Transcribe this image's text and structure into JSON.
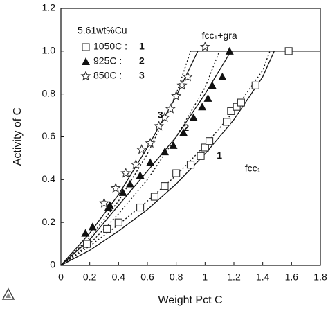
{
  "chart_data": {
    "type": "scatter",
    "x_label": "Weight Pct C",
    "y_label": "Activity of C",
    "xlim": [
      0,
      1.8
    ],
    "ylim": [
      0,
      1.2
    ],
    "xticks": [
      0,
      0.2,
      0.4,
      0.6,
      0.8,
      1,
      1.2,
      1.4,
      1.6,
      1.8
    ],
    "yticks": [
      0,
      0.2,
      0.4,
      0.6,
      0.8,
      {
        "value": 1,
        "label": "1.0"
      },
      1.2
    ],
    "legend_title": "5.61wt%Cu",
    "series": [
      {
        "name": "1050C :",
        "curve_label": "1",
        "marker": "square",
        "color": "#333",
        "x": [
          0.18,
          0.32,
          0.4,
          0.55,
          0.65,
          0.72,
          0.8,
          0.9,
          0.97,
          1.0,
          1.03,
          1.15,
          1.18,
          1.22,
          1.25,
          1.35,
          1.58
        ],
        "values": [
          0.1,
          0.17,
          0.2,
          0.27,
          0.32,
          0.37,
          0.43,
          0.47,
          0.51,
          0.55,
          0.58,
          0.67,
          0.72,
          0.74,
          0.76,
          0.84,
          1.0
        ]
      },
      {
        "name": "925C :",
        "curve_label": "2",
        "marker": "triangle",
        "color": "#111",
        "x": [
          0.17,
          0.22,
          0.33,
          0.34,
          0.43,
          0.48,
          0.55,
          0.62,
          0.72,
          0.78,
          0.85,
          0.92,
          0.98,
          1.02,
          1.05,
          1.12,
          1.17
        ],
        "values": [
          0.15,
          0.18,
          0.27,
          0.28,
          0.34,
          0.38,
          0.42,
          0.48,
          0.53,
          0.56,
          0.62,
          0.69,
          0.74,
          0.78,
          0.84,
          0.88,
          1.0
        ]
      },
      {
        "name": "850C :",
        "curve_label": "3",
        "marker": "star",
        "color": "#333",
        "x": [
          0.3,
          0.38,
          0.45,
          0.52,
          0.56,
          0.62,
          0.68,
          0.72,
          0.76,
          0.8,
          0.84,
          0.88,
          1.0
        ],
        "values": [
          0.29,
          0.36,
          0.43,
          0.47,
          0.54,
          0.57,
          0.65,
          0.69,
          0.73,
          0.79,
          0.84,
          0.88,
          1.02
        ]
      }
    ],
    "curves": [
      {
        "dashed": false,
        "x": [
          0,
          0.2,
          0.4,
          0.6,
          0.8,
          1.0,
          1.2,
          1.4,
          1.48
        ],
        "values": [
          0,
          0.07,
          0.16,
          0.26,
          0.38,
          0.52,
          0.68,
          0.88,
          1.0
        ]
      },
      {
        "dashed": true,
        "x": [
          0,
          0.2,
          0.4,
          0.6,
          0.8,
          1.0,
          1.2,
          1.4,
          1.45
        ],
        "values": [
          0,
          0.09,
          0.19,
          0.3,
          0.42,
          0.56,
          0.72,
          0.91,
          1.0
        ]
      },
      {
        "dashed": false,
        "x": [
          0,
          0.2,
          0.4,
          0.6,
          0.8,
          1.0,
          1.18
        ],
        "values": [
          0,
          0.12,
          0.28,
          0.44,
          0.6,
          0.8,
          1.0
        ]
      },
      {
        "dashed": true,
        "x": [
          0,
          0.2,
          0.4,
          0.6,
          0.8,
          1.0,
          1.1
        ],
        "values": [
          0,
          0.1,
          0.24,
          0.4,
          0.6,
          0.83,
          1.0
        ]
      },
      {
        "dashed": false,
        "x": [
          0,
          0.2,
          0.4,
          0.6,
          0.8,
          0.95
        ],
        "values": [
          0,
          0.15,
          0.33,
          0.55,
          0.79,
          1.0
        ]
      },
      {
        "dashed": true,
        "x": [
          0,
          0.2,
          0.4,
          0.6,
          0.8,
          0.9
        ],
        "values": [
          0,
          0.13,
          0.3,
          0.52,
          0.8,
          1.0
        ]
      },
      {
        "dashed": false,
        "x": [
          0.9,
          1.8
        ],
        "values": [
          1,
          1
        ]
      }
    ],
    "curve_label_positions": [
      {
        "x": 1.1,
        "y": 0.51
      },
      {
        "x": 0.87,
        "y": 0.64
      },
      {
        "x": 0.69,
        "y": 0.7
      }
    ],
    "annotations": [
      {
        "text": "fcc₁+gra",
        "x": 1.1,
        "y": 1.07
      },
      {
        "text": "fcc₁",
        "x": 1.33,
        "y": 0.45
      }
    ]
  }
}
